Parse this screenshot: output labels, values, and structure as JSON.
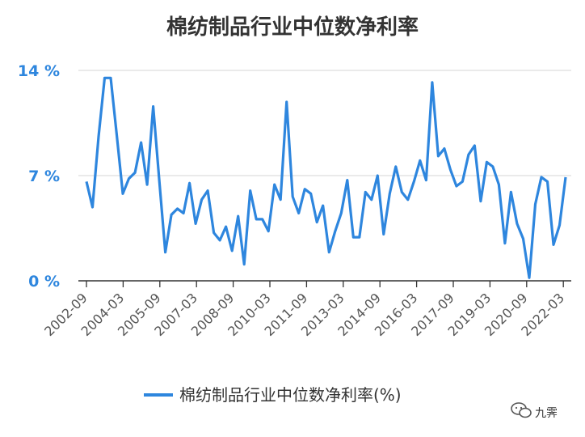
{
  "watermark": {
    "text": "九霁"
  },
  "chart_data": {
    "type": "line",
    "title": "棉纺制品行业中位数净利率",
    "xlabel": "",
    "ylabel": "",
    "ylim": [
      0,
      14
    ],
    "ytick_values": [
      0,
      7,
      14
    ],
    "ytick_labels": [
      "0 %",
      "7 %",
      "14 %"
    ],
    "xtick_labels": [
      "2002-09",
      "2004-03",
      "2005-09",
      "2007-03",
      "2008-09",
      "2010-03",
      "2011-09",
      "2013-03",
      "2014-09",
      "2016-03",
      "2017-09",
      "2019-03",
      "2020-09",
      "2022-03"
    ],
    "grid": true,
    "legend_position": "bottom",
    "colors": {
      "line": "#2e86de",
      "ytick": "#2e86de",
      "grid": "#dddddd",
      "axis": "#333333"
    },
    "series": [
      {
        "name": "棉纺制品行业中位数净利率(%)",
        "values": [
          6.6,
          4.9,
          9.6,
          13.5,
          13.5,
          9.7,
          5.8,
          6.8,
          7.2,
          9.2,
          6.4,
          11.6,
          6.7,
          1.9,
          4.4,
          4.8,
          4.5,
          6.5,
          3.8,
          5.4,
          6.0,
          3.2,
          2.7,
          3.6,
          2.0,
          4.3,
          1.1,
          6.0,
          4.1,
          4.1,
          3.3,
          6.4,
          5.4,
          11.9,
          5.6,
          4.5,
          6.1,
          5.8,
          3.9,
          5.0,
          1.9,
          3.3,
          4.5,
          6.7,
          2.9,
          2.9,
          5.9,
          5.4,
          7.0,
          3.1,
          5.8,
          7.6,
          5.9,
          5.4,
          6.6,
          8.0,
          6.7,
          13.2,
          8.3,
          8.8,
          7.4,
          6.3,
          6.6,
          8.4,
          9.0,
          5.3,
          7.9,
          7.6,
          6.4,
          2.5,
          5.9,
          3.8,
          2.8,
          0.2,
          5.1,
          6.9,
          6.6,
          2.4,
          3.7,
          6.9
        ]
      }
    ]
  }
}
